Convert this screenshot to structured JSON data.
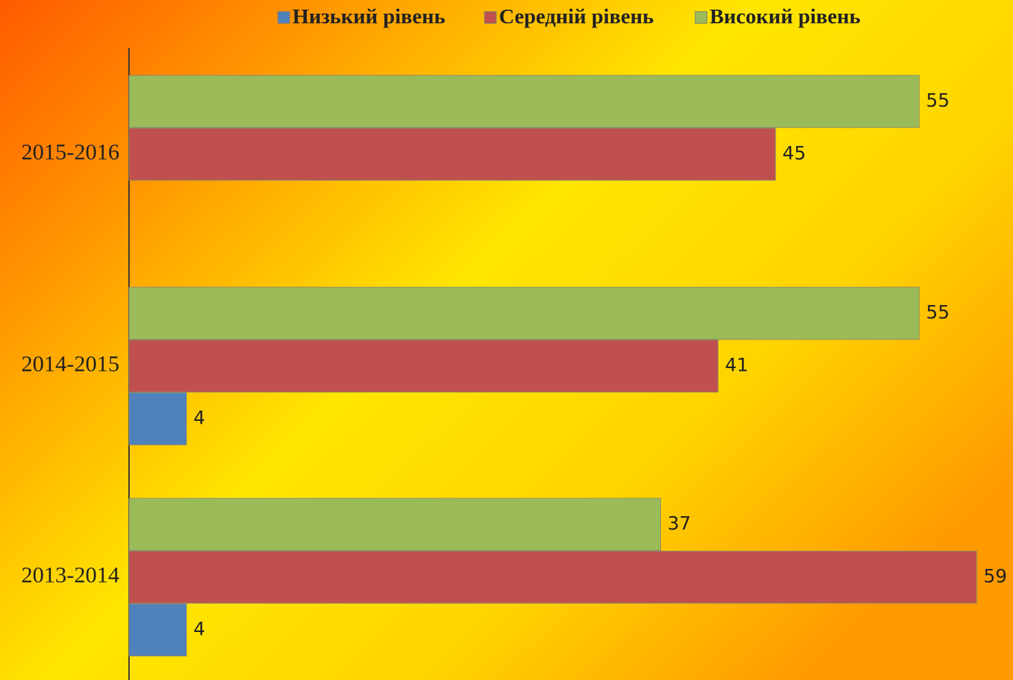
{
  "chart_data": {
    "type": "bar",
    "orientation": "horizontal",
    "categories": [
      "2013-2014",
      "2014-2015",
      "2015-2016"
    ],
    "series": [
      {
        "name": "Низький рівень",
        "color": "#4f81bd",
        "values": [
          4,
          4,
          null
        ]
      },
      {
        "name": "Середній рівень",
        "color": "#c0504d",
        "values": [
          59,
          41,
          45
        ]
      },
      {
        "name": "Високий рівень",
        "color": "#9bbb59",
        "values": [
          37,
          55,
          55
        ]
      }
    ],
    "legend": "top"
  }
}
